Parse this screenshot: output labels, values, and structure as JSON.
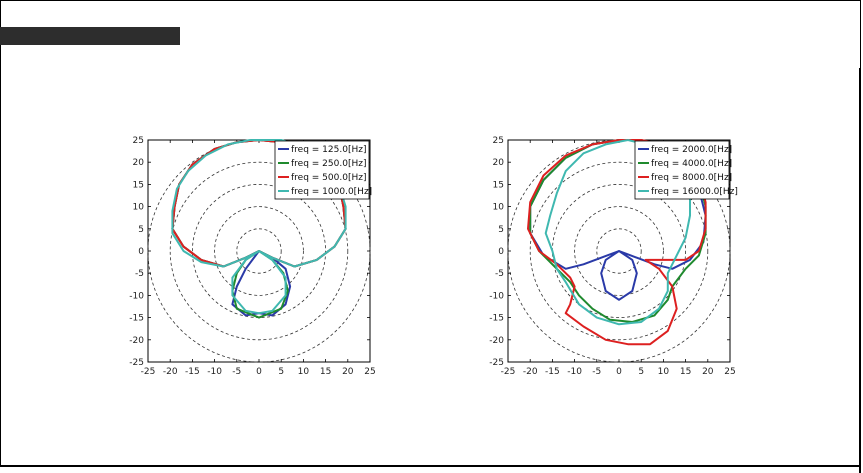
{
  "header": {
    "title": ""
  },
  "chart_data": [
    {
      "type": "line",
      "polar": true,
      "title": "",
      "xlim": [
        -25,
        25
      ],
      "ylim": [
        -25,
        25
      ],
      "ring_radii": [
        5,
        10,
        15,
        20,
        25
      ],
      "xticks": [
        -25,
        -20,
        -15,
        -10,
        -5,
        0,
        5,
        10,
        15,
        20,
        25
      ],
      "yticks": [
        25,
        20,
        15,
        10,
        5,
        0,
        -5,
        -10,
        -15,
        -20,
        -25
      ],
      "xtick_labels": [
        "-25",
        "-20",
        "-15",
        "-10",
        "-5",
        "0",
        "5",
        "10",
        "15",
        "20",
        "25"
      ],
      "ytick_labels": [
        "25",
        "20",
        "15",
        "10",
        "5",
        "0",
        "-5",
        "-10",
        "-15",
        "-20",
        "-25"
      ],
      "legend": "top-right",
      "grid": "dashed concentric circles",
      "series": [
        {
          "name": "freq = 125.0[Hz]",
          "color": "#2a3aa8",
          "points": [
            [
              0,
              25
            ],
            [
              -5,
              24.5
            ],
            [
              -10,
              23
            ],
            [
              -15,
              19.5
            ],
            [
              -18,
              15
            ],
            [
              -19,
              10
            ],
            [
              -19.5,
              5
            ],
            [
              -17,
              1
            ],
            [
              -13,
              -2
            ],
            [
              -8,
              -3.5
            ],
            [
              -3,
              -1.5
            ],
            [
              0,
              0
            ],
            [
              3,
              -1.5
            ],
            [
              6,
              -4
            ],
            [
              7,
              -8
            ],
            [
              6,
              -12
            ],
            [
              3,
              -14.5
            ],
            [
              0,
              -14
            ],
            [
              -3,
              -14.5
            ],
            [
              -6,
              -12
            ],
            [
              -5,
              -8
            ],
            [
              -3,
              -4
            ],
            [
              0,
              0
            ],
            [
              3,
              -1.5
            ],
            [
              8,
              -3.5
            ],
            [
              13,
              -2
            ],
            [
              17,
              1
            ],
            [
              19.5,
              5
            ],
            [
              19,
              10
            ],
            [
              18,
              15
            ],
            [
              15,
              19.5
            ],
            [
              10,
              23
            ],
            [
              5,
              24.5
            ],
            [
              0,
              25
            ]
          ]
        },
        {
          "name": "freq = 250.0[Hz]",
          "color": "#1f8a2e",
          "points": [
            [
              0,
              25
            ],
            [
              -5,
              24.5
            ],
            [
              -10,
              23
            ],
            [
              -15,
              19.5
            ],
            [
              -18,
              15
            ],
            [
              -19,
              10
            ],
            [
              -19.5,
              5
            ],
            [
              -17,
              1
            ],
            [
              -13,
              -2
            ],
            [
              -8,
              -3.5
            ],
            [
              -3,
              -1.5
            ],
            [
              0,
              0
            ],
            [
              3,
              -2
            ],
            [
              5.5,
              -5
            ],
            [
              6.5,
              -9
            ],
            [
              5,
              -13
            ],
            [
              0,
              -15
            ],
            [
              -5,
              -13
            ],
            [
              -6,
              -9
            ],
            [
              -5,
              -5
            ],
            [
              -3,
              -2
            ],
            [
              0,
              0
            ],
            [
              3,
              -1.5
            ],
            [
              8,
              -3.5
            ],
            [
              13,
              -2
            ],
            [
              17,
              1
            ],
            [
              19.5,
              5
            ],
            [
              19,
              10
            ],
            [
              18,
              15
            ],
            [
              15,
              19.5
            ],
            [
              10,
              23
            ],
            [
              5,
              24.5
            ],
            [
              0,
              25
            ]
          ]
        },
        {
          "name": "freq = 500.0[Hz]",
          "color": "#dd2020",
          "points": [
            [
              0,
              25
            ],
            [
              -5,
              24.5
            ],
            [
              -10,
              23
            ],
            [
              -15,
              19.5
            ],
            [
              -18,
              15
            ],
            [
              -19,
              10
            ],
            [
              -19.5,
              5
            ],
            [
              -17,
              1
            ],
            [
              -13,
              -2
            ],
            [
              -8,
              -3.5
            ],
            [
              -3,
              -1.5
            ],
            [
              0,
              0
            ],
            [
              3,
              -1.5
            ],
            [
              8,
              -3.5
            ],
            [
              13,
              -2
            ],
            [
              17,
              1
            ],
            [
              19.5,
              5
            ],
            [
              19,
              10
            ],
            [
              18,
              15
            ],
            [
              15,
              19.5
            ],
            [
              10,
              23
            ],
            [
              5,
              24.5
            ],
            [
              0,
              25
            ]
          ]
        },
        {
          "name": "freq = 1000.0[Hz]",
          "color": "#3fb8b0",
          "points": [
            [
              -2,
              25
            ],
            [
              -7,
              24
            ],
            [
              -12,
              21.5
            ],
            [
              -16,
              18
            ],
            [
              -18.5,
              14
            ],
            [
              -19.5,
              9
            ],
            [
              -19.5,
              4
            ],
            [
              -17,
              0
            ],
            [
              -13,
              -2.5
            ],
            [
              -8,
              -3.5
            ],
            [
              -3,
              -1.5
            ],
            [
              0,
              0
            ],
            [
              3,
              -2
            ],
            [
              6,
              -6
            ],
            [
              6,
              -10
            ],
            [
              3,
              -13.5
            ],
            [
              0,
              -14
            ],
            [
              -3,
              -13.5
            ],
            [
              -6,
              -10
            ],
            [
              -6,
              -6
            ],
            [
              -3,
              -2
            ],
            [
              0,
              0
            ],
            [
              3,
              -1.5
            ],
            [
              8,
              -3.5
            ],
            [
              13,
              -2
            ],
            [
              17,
              1
            ],
            [
              19.5,
              5
            ],
            [
              19.5,
              10
            ],
            [
              18,
              15
            ],
            [
              15,
              20
            ],
            [
              10,
              23.5
            ],
            [
              5,
              25
            ],
            [
              -2,
              25
            ]
          ]
        }
      ]
    },
    {
      "type": "line",
      "polar": true,
      "title": "",
      "xlim": [
        -25,
        25
      ],
      "ylim": [
        -25,
        25
      ],
      "ring_radii": [
        5,
        10,
        15,
        20,
        25
      ],
      "xticks": [
        -25,
        -20,
        -15,
        -10,
        -5,
        0,
        5,
        10,
        15,
        20,
        25
      ],
      "yticks": [
        25,
        20,
        15,
        10,
        5,
        0,
        -5,
        -10,
        -15,
        -20,
        -25
      ],
      "xtick_labels": [
        "-25",
        "-20",
        "-15",
        "-10",
        "-5",
        "0",
        "5",
        "10",
        "15",
        "20",
        "25"
      ],
      "ytick_labels": [
        "25",
        "20",
        "15",
        "10",
        "5",
        "0",
        "-5",
        "-10",
        "-15",
        "-20",
        "-25"
      ],
      "legend": "top-right",
      "grid": "dashed concentric circles",
      "series": [
        {
          "name": "freq = 2000.0[Hz]",
          "color": "#2a3aa8",
          "points": [
            [
              0,
              25
            ],
            [
              -6,
              24
            ],
            [
              -12,
              21
            ],
            [
              -17,
              16
            ],
            [
              -20,
              10
            ],
            [
              -20,
              4
            ],
            [
              -17,
              -1
            ],
            [
              -12,
              -4
            ],
            [
              -8,
              -3
            ],
            [
              -4,
              -1.5
            ],
            [
              0,
              0
            ],
            [
              3,
              -2
            ],
            [
              4,
              -5
            ],
            [
              3,
              -9
            ],
            [
              0,
              -11
            ],
            [
              -3,
              -9
            ],
            [
              -4,
              -5
            ],
            [
              -3,
              -2
            ],
            [
              0,
              0
            ],
            [
              4,
              -1.5
            ],
            [
              8,
              -3
            ],
            [
              12,
              -4
            ],
            [
              16,
              -2
            ],
            [
              19,
              2
            ],
            [
              19.5,
              8
            ],
            [
              18,
              14
            ],
            [
              15,
              19
            ],
            [
              10,
              23
            ],
            [
              5,
              25
            ],
            [
              0,
              25
            ]
          ]
        },
        {
          "name": "freq = 4000.0[Hz]",
          "color": "#1f8a2e",
          "points": [
            [
              0,
              25
            ],
            [
              -6,
              24
            ],
            [
              -12,
              21
            ],
            [
              -17,
              16
            ],
            [
              -20,
              10
            ],
            [
              -20,
              4
            ],
            [
              -18,
              0
            ],
            [
              -14,
              -4
            ],
            [
              -11,
              -7
            ],
            [
              -9,
              -10
            ],
            [
              -6,
              -13
            ],
            [
              -2,
              -15.5
            ],
            [
              3,
              -16
            ],
            [
              8,
              -14.5
            ],
            [
              11,
              -11
            ],
            [
              12,
              -8
            ],
            [
              15,
              -4
            ],
            [
              18,
              -1
            ],
            [
              19.5,
              4
            ],
            [
              19.5,
              10
            ],
            [
              18,
              16
            ],
            [
              15,
              20
            ],
            [
              10,
              23.5
            ],
            [
              5,
              25
            ],
            [
              0,
              25
            ]
          ]
        },
        {
          "name": "freq = 8000.0[Hz]",
          "color": "#dd2020",
          "points": [
            [
              0,
              25
            ],
            [
              -6,
              24
            ],
            [
              -12,
              21.5
            ],
            [
              -17,
              17
            ],
            [
              -20,
              11
            ],
            [
              -20.5,
              5
            ],
            [
              -18,
              0
            ],
            [
              -14,
              -3
            ],
            [
              -11,
              -6
            ],
            [
              -10,
              -8
            ],
            [
              -11,
              -12
            ],
            [
              -12,
              -14
            ],
            [
              -8,
              -17
            ],
            [
              -3,
              -20
            ],
            [
              2,
              -21
            ],
            [
              7,
              -21
            ],
            [
              11,
              -18
            ],
            [
              13,
              -13
            ],
            [
              12,
              -8
            ],
            [
              9,
              -4
            ],
            [
              6,
              -2
            ],
            [
              15,
              -2
            ],
            [
              18,
              0
            ],
            [
              19.5,
              5
            ],
            [
              19.5,
              11
            ],
            [
              18,
              17
            ],
            [
              15,
              21
            ],
            [
              10,
              24
            ],
            [
              5,
              25
            ],
            [
              0,
              25
            ]
          ]
        },
        {
          "name": "freq = 16000.0[Hz]",
          "color": "#3fb8b0",
          "points": [
            [
              2,
              25
            ],
            [
              -3,
              24
            ],
            [
              -8,
              22
            ],
            [
              -12,
              18
            ],
            [
              -14,
              13
            ],
            [
              -15.5,
              8
            ],
            [
              -16.5,
              4
            ],
            [
              -15,
              0
            ],
            [
              -14,
              -4
            ],
            [
              -12,
              -7
            ],
            [
              -9,
              -12
            ],
            [
              -5,
              -15
            ],
            [
              0,
              -16.5
            ],
            [
              5,
              -16
            ],
            [
              9,
              -13
            ],
            [
              11,
              -9
            ],
            [
              11,
              -5
            ],
            [
              13,
              -1
            ],
            [
              15,
              3
            ],
            [
              16,
              8
            ],
            [
              16,
              13
            ],
            [
              13,
              18
            ],
            [
              10,
              21
            ],
            [
              6,
              24
            ],
            [
              2,
              25
            ]
          ]
        }
      ]
    }
  ]
}
